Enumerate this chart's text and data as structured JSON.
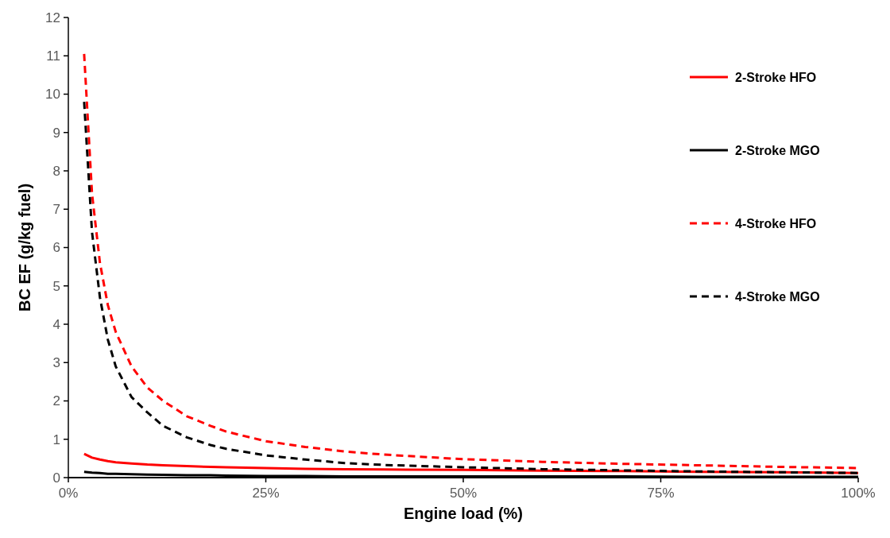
{
  "chart_data": {
    "type": "line",
    "xlabel": "Engine load (%)",
    "ylabel": "BC EF (g/kg fuel)",
    "xlim": [
      0,
      100
    ],
    "ylim": [
      0,
      12
    ],
    "xticks": [
      {
        "value": 0,
        "label": "0%"
      },
      {
        "value": 25,
        "label": "25%"
      },
      {
        "value": 50,
        "label": "50%"
      },
      {
        "value": 75,
        "label": "75%"
      },
      {
        "value": 100,
        "label": "100%"
      }
    ],
    "yticks": [
      0,
      1,
      2,
      3,
      4,
      5,
      6,
      7,
      8,
      9,
      10,
      11,
      12
    ],
    "grid": false,
    "legend": "top right",
    "marker": "none",
    "x": [
      2,
      3,
      4,
      5,
      6,
      8,
      10,
      12,
      15,
      18,
      20,
      25,
      30,
      35,
      40,
      50,
      60,
      70,
      80,
      90,
      100
    ],
    "series": [
      {
        "name": "2-Stroke HFO",
        "color": "#ff0000",
        "line_style": "solid",
        "values": [
          0.62,
          0.52,
          0.47,
          0.43,
          0.4,
          0.37,
          0.34,
          0.32,
          0.3,
          0.28,
          0.27,
          0.25,
          0.23,
          0.22,
          0.21,
          0.2,
          0.18,
          0.17,
          0.15,
          0.14,
          0.12
        ]
      },
      {
        "name": "2-Stroke MGO",
        "color": "#000000",
        "line_style": "solid",
        "values": [
          0.15,
          0.13,
          0.12,
          0.1,
          0.1,
          0.09,
          0.08,
          0.07,
          0.06,
          0.06,
          0.05,
          0.04,
          0.04,
          0.03,
          0.03,
          0.03,
          0.03,
          0.03,
          0.02,
          0.02,
          0.02
        ]
      },
      {
        "name": "4-Stroke HFO",
        "color": "#ff0000",
        "line_style": "dashed",
        "values": [
          11.05,
          7.4,
          5.6,
          4.5,
          3.8,
          2.9,
          2.35,
          2.0,
          1.6,
          1.35,
          1.2,
          0.95,
          0.8,
          0.68,
          0.6,
          0.48,
          0.41,
          0.36,
          0.32,
          0.28,
          0.25
        ]
      },
      {
        "name": "4-Stroke MGO",
        "color": "#000000",
        "line_style": "dashed",
        "values": [
          9.8,
          6.4,
          4.7,
          3.6,
          2.9,
          2.1,
          1.7,
          1.35,
          1.05,
          0.85,
          0.75,
          0.58,
          0.47,
          0.38,
          0.33,
          0.27,
          0.22,
          0.19,
          0.16,
          0.14,
          0.12
        ]
      }
    ]
  }
}
